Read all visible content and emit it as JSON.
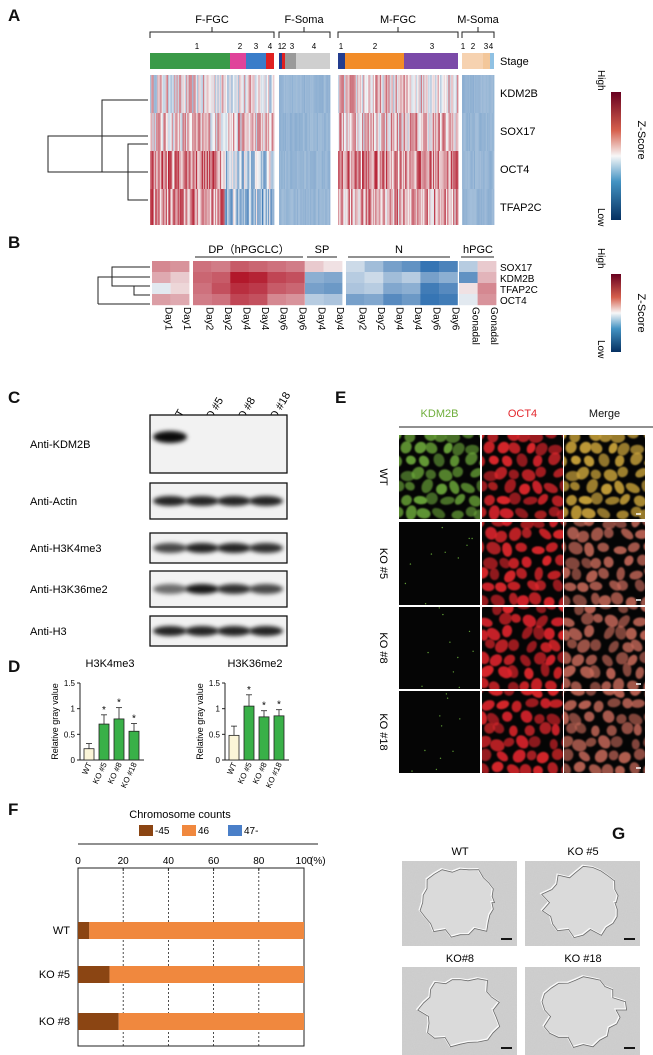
{
  "panels": {
    "A": "A",
    "B": "B",
    "C": "C",
    "D": "D",
    "E": "E",
    "F": "F",
    "G": "G"
  },
  "panelA": {
    "groups": [
      {
        "label": "F-FGC",
        "stages": [
          "1",
          "2",
          "3",
          "4"
        ]
      },
      {
        "label": "F-Soma",
        "stages": [
          "1",
          "2",
          "3",
          "4"
        ]
      },
      {
        "label": "M-FGC",
        "stages": [
          "1",
          "2",
          "3"
        ]
      },
      {
        "label": "M-Soma",
        "stages": [
          "1",
          "2",
          "3",
          "4"
        ]
      }
    ],
    "stage_label": "Stage",
    "genes": [
      "KDM2B",
      "SOX17",
      "OCT4",
      "TFAP2C"
    ],
    "scale": {
      "high": "High",
      "low": "Low",
      "title": "Z-Score"
    },
    "colors": {
      "red": "#b2182b",
      "blue": "#2166ac",
      "green": "#3a9a48",
      "pink": "#e0439a",
      "mblue": "#3a7dc9",
      "red4": "#e02020",
      "orange": "#f28c28",
      "purple": "#7b4aa8",
      "navy": "#233d8f",
      "peach": "#f6d2b0",
      "lightblue": "#8fc1e3",
      "grey": "#9a9a9a",
      "lgrey": "#cfcfcf"
    }
  },
  "panelB": {
    "groups": [
      "DP（hPGCLC）",
      "SP",
      "N",
      "hPGC"
    ],
    "genes": [
      "SOX17",
      "KDM2B",
      "TFAP2C",
      "OCT4"
    ],
    "columns": [
      "Day1",
      "Day1",
      "Day2",
      "Day2",
      "Day4",
      "Day4",
      "Day6",
      "Day6",
      "Day4",
      "Day4",
      "Day2",
      "Day2",
      "Day4",
      "Day4",
      "Day6",
      "Day6",
      "Gonadal",
      "Gonadal"
    ],
    "values": [
      [
        0.5,
        0.45,
        0.6,
        0.55,
        0.7,
        0.65,
        0.6,
        0.55,
        0.2,
        0.1,
        -0.2,
        -0.4,
        -0.6,
        -0.7,
        -0.9,
        -0.8,
        -0.3,
        0.2
      ],
      [
        0.35,
        0.2,
        0.65,
        0.7,
        1.0,
        0.95,
        0.8,
        0.75,
        -0.5,
        -0.55,
        -0.3,
        -0.2,
        -0.4,
        -0.3,
        -0.6,
        -0.5,
        -0.7,
        0.3
      ],
      [
        -0.1,
        0.15,
        0.6,
        0.75,
        0.9,
        0.85,
        0.7,
        0.65,
        -0.6,
        -0.65,
        -0.35,
        -0.3,
        -0.55,
        -0.5,
        -0.85,
        -0.75,
        0.1,
        0.5
      ],
      [
        0.4,
        0.35,
        0.55,
        0.6,
        0.8,
        0.75,
        0.5,
        0.45,
        -0.3,
        -0.35,
        -0.6,
        -0.55,
        -0.75,
        -0.65,
        -0.9,
        -0.85,
        -0.1,
        0.45
      ]
    ],
    "scale": {
      "high": "High",
      "low": "Low",
      "title": "Z-Score"
    }
  },
  "panelC": {
    "lanes": [
      "WT",
      "KO #5",
      "KO #8",
      "KO #18"
    ],
    "blots": [
      "Anti-KDM2B",
      "Anti-Actin",
      "Anti-H3K4me3",
      "Anti-H3K36me2",
      "Anti-H3"
    ]
  },
  "panelD": {
    "charts": [
      {
        "title": "H3K4me3",
        "ylabel": "Relative gray value",
        "categories": [
          "WT",
          "KO #5",
          "KO #8",
          "KO #18"
        ],
        "values": [
          0.22,
          0.7,
          0.8,
          0.56
        ],
        "errors": [
          0.1,
          0.18,
          0.22,
          0.15
        ],
        "sig": [
          "",
          "*",
          "*",
          "*"
        ],
        "ylim": [
          0,
          1.5
        ],
        "ticks": [
          "0",
          "0.5",
          "1",
          "1.5"
        ]
      },
      {
        "title": "H3K36me2",
        "ylabel": "Relative gray value",
        "categories": [
          "WT",
          "KO #5",
          "KO #8",
          "KO #18"
        ],
        "values": [
          0.48,
          1.05,
          0.84,
          0.86
        ],
        "errors": [
          0.18,
          0.22,
          0.12,
          0.12
        ],
        "sig": [
          "",
          "*",
          "*",
          "*"
        ],
        "ylim": [
          0,
          1.5
        ],
        "ticks": [
          "0",
          "0.5",
          "1",
          "1.5"
        ]
      }
    ],
    "colors": {
      "wt": "#fbf5d8",
      "ko": "#39b048"
    }
  },
  "panelE": {
    "channels": [
      "KDM2B",
      "OCT4",
      "Merge"
    ],
    "rows": [
      "WT",
      "KO #5",
      "KO #8",
      "KO #18"
    ],
    "colors": {
      "green": "#6fae3b",
      "red": "#e3262c"
    }
  },
  "panelF": {
    "title": "Chromosome counts",
    "legend": [
      "-45",
      "46",
      "47-"
    ],
    "colors": {
      "c45": "#8b4513",
      "c46": "#f0883e",
      "c47": "#4a7fc8"
    },
    "axis_ticks": [
      "0",
      "20",
      "40",
      "60",
      "80",
      "100"
    ],
    "axis_unit": "(%)",
    "rows": [
      {
        "label": "WT",
        "values": [
          5,
          95,
          0
        ]
      },
      {
        "label": "KO #5",
        "values": [
          14,
          86,
          0
        ]
      },
      {
        "label": "KO #8",
        "values": [
          18,
          82,
          0
        ]
      }
    ]
  },
  "panelG": {
    "labels": [
      "WT",
      "KO #5",
      "KO#8",
      "KO #18"
    ]
  }
}
